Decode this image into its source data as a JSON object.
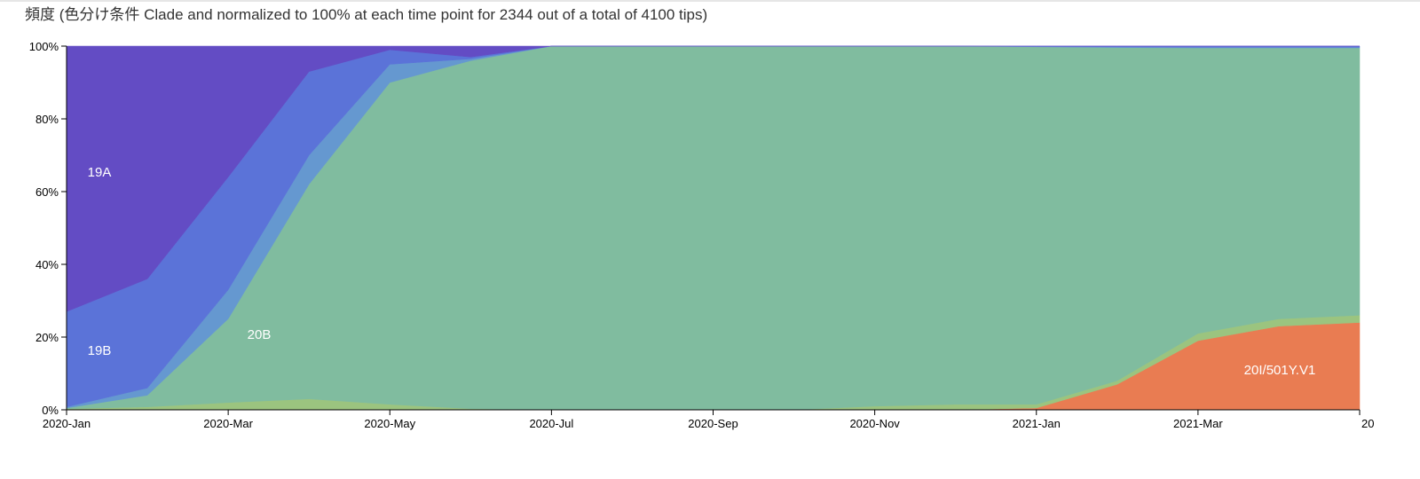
{
  "chart_data": {
    "type": "stacked-area",
    "title": "頻度 (色分け条件 Clade and normalized to 100% at each time point for 2344 out of a total of 4100 tips)",
    "categories": [
      "2020-Jan",
      null,
      "2020-Mar",
      null,
      "2020-May",
      null,
      "2020-Jul",
      null,
      "2020-Sep",
      null,
      "2020-Nov",
      null,
      "2021-Jan",
      null,
      "2021-Mar",
      null,
      "20"
    ],
    "series": [
      {
        "name": "20I/501Y.V1",
        "color": "#e97c52",
        "values": [
          0,
          0,
          0,
          0,
          0,
          0,
          0,
          0,
          0,
          0,
          0,
          0,
          0.5,
          7,
          19,
          23,
          24
        ]
      },
      {
        "color": "#9bc47f",
        "values": [
          0.3,
          0.8,
          2,
          3,
          1.5,
          0.3,
          0,
          0,
          0,
          0,
          1,
          1.5,
          1,
          1,
          2,
          2,
          2
        ]
      },
      {
        "name": "20B",
        "color": "#80bc9f",
        "values": [
          0.2,
          3.2,
          23,
          59,
          88.5,
          95.7,
          100,
          100,
          100,
          100,
          99,
          98.5,
          98.3,
          91.6,
          78.5,
          74.5,
          73.5
        ]
      },
      {
        "color": "#6598d0",
        "values": [
          0.3,
          2,
          8,
          8,
          5,
          0.5,
          0,
          0,
          0,
          0,
          0,
          0,
          0.1,
          0.2,
          0.2,
          0.2,
          0.2
        ]
      },
      {
        "name": "19B",
        "color": "#5b73d8",
        "values": [
          26.2,
          30,
          31,
          23,
          4,
          0.5,
          0,
          0,
          0,
          0,
          0,
          0,
          0.1,
          0.2,
          0.3,
          0.3,
          0.3
        ]
      },
      {
        "name": "19A",
        "color": "#634cc4",
        "values": [
          73,
          64,
          36,
          7,
          1,
          3,
          0,
          0,
          0,
          0,
          0,
          0,
          0,
          0,
          0,
          0,
          0
        ]
      }
    ],
    "ylim": [
      0,
      100
    ],
    "yticks": [
      {
        "value": 0,
        "label": "0%"
      },
      {
        "value": 20,
        "label": "20%"
      },
      {
        "value": 40,
        "label": "40%"
      },
      {
        "value": 60,
        "label": "60%"
      },
      {
        "value": 80,
        "label": "80%"
      },
      {
        "value": 100,
        "label": "100%"
      }
    ]
  }
}
